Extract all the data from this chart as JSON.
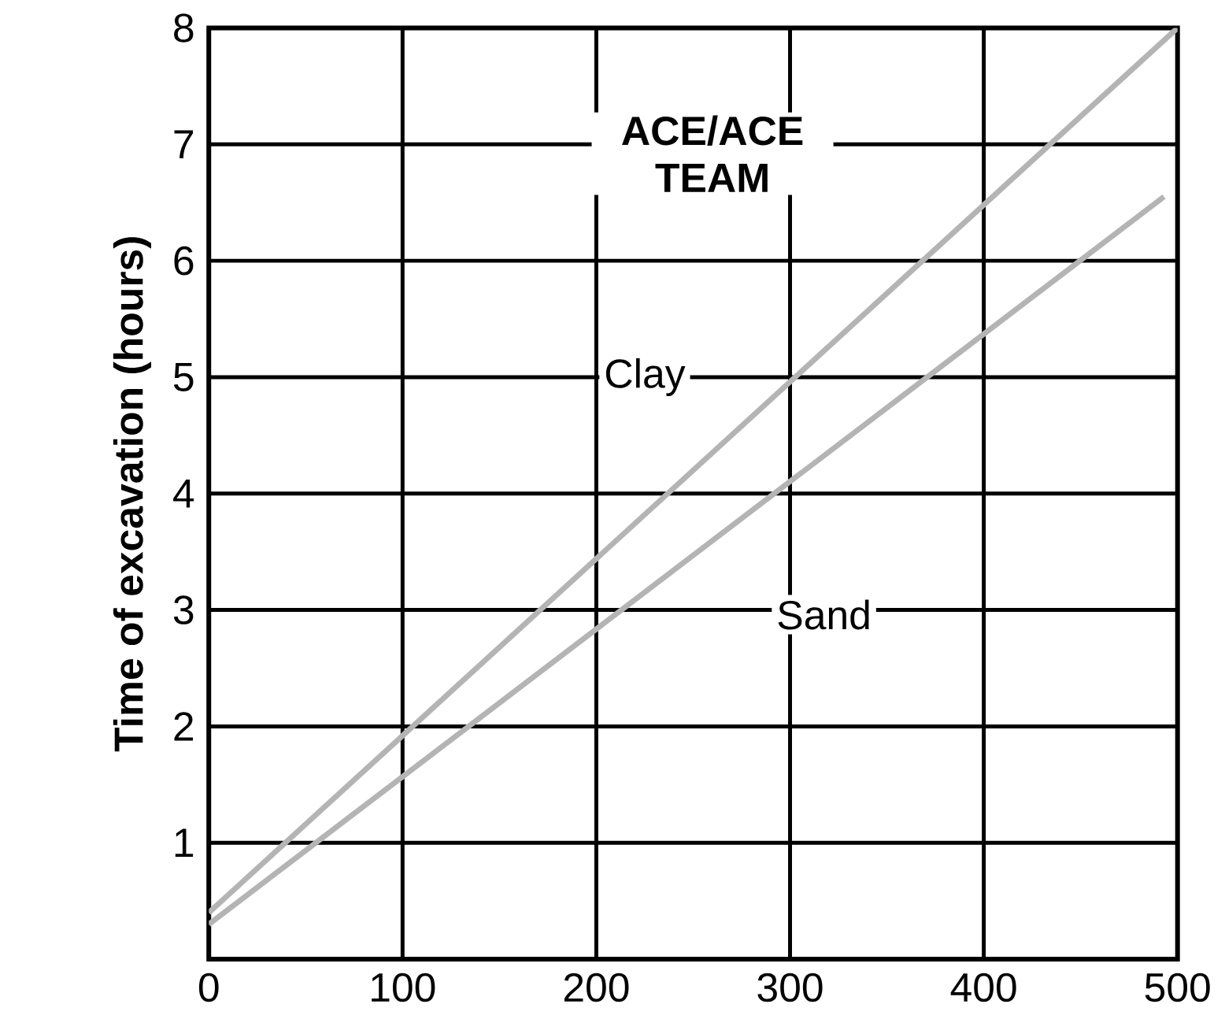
{
  "chart_data": {
    "type": "line",
    "ylabel": "Time of excavation (hours)",
    "annotations": [
      "ACE/ACE TEAM"
    ],
    "series": [
      {
        "name": "Clay",
        "color": "#b4b4b4",
        "x": [
          0,
          500
        ],
        "values": [
          0.4,
          8.0
        ]
      },
      {
        "name": "Sand",
        "color": "#b4b4b4",
        "x": [
          0,
          493
        ],
        "values": [
          0.3,
          6.55
        ]
      }
    ],
    "xlim": [
      0,
      500
    ],
    "ylim": [
      0,
      8
    ],
    "xticks": [
      0,
      100,
      200,
      300,
      400,
      500
    ],
    "yticks": [
      1,
      2,
      3,
      4,
      5,
      6,
      7,
      8
    ],
    "grid": true,
    "marker": "none",
    "line_style": "solid"
  }
}
